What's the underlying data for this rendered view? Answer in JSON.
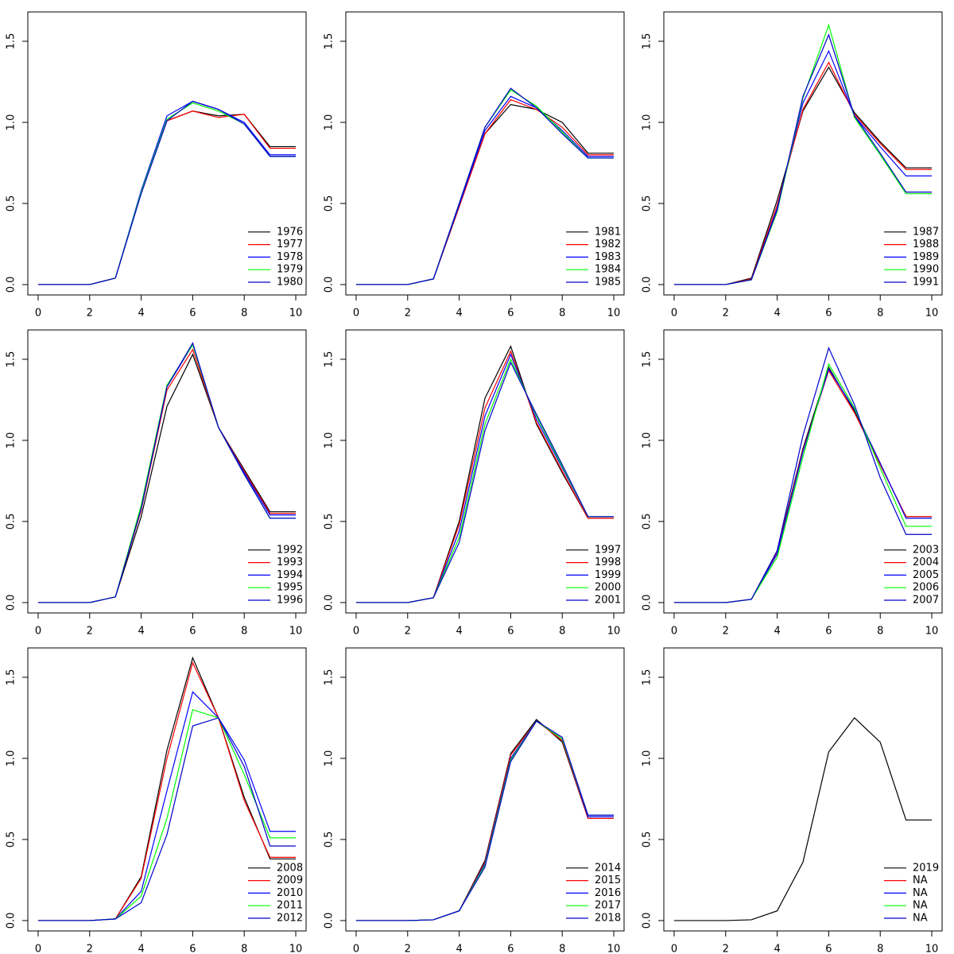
{
  "chart_data": [
    {
      "type": "line",
      "x": [
        0,
        1,
        2,
        3,
        4,
        5,
        6,
        7,
        8,
        9,
        10
      ],
      "xlim": [
        -0.4,
        10.4
      ],
      "xticks": [
        0,
        2,
        4,
        6,
        8,
        10
      ],
      "ylim": [
        -0.064,
        1.681
      ],
      "yticks": [
        {
          "value": 0,
          "label": "0.0"
        },
        0.5,
        {
          "value": 1,
          "label": "1.0"
        },
        1.5
      ],
      "legend": "bottomright",
      "series": [
        {
          "name": "1976",
          "color": "#000000",
          "values": [
            0,
            0,
            0,
            0.04,
            0.57,
            1.01,
            1.07,
            1.04,
            1.05,
            0.85,
            0.85
          ]
        },
        {
          "name": "1977",
          "color": "#ff0000",
          "values": [
            0,
            0,
            0,
            0.04,
            0.57,
            1.01,
            1.07,
            1.03,
            1.05,
            0.84,
            0.84
          ]
        },
        {
          "name": "1978",
          "color": "#0000ff",
          "values": [
            0,
            0,
            0,
            0.04,
            0.58,
            1.04,
            1.13,
            1.08,
            1.0,
            0.8,
            0.8
          ]
        },
        {
          "name": "1979",
          "color": "#00ff00",
          "values": [
            0,
            0,
            0,
            0.04,
            0.57,
            1.02,
            1.12,
            1.07,
            0.99,
            0.79,
            0.79
          ]
        },
        {
          "name": "1980",
          "color": "#0000cd",
          "values": [
            0,
            0,
            0,
            0.04,
            0.56,
            1.01,
            1.13,
            1.08,
            0.99,
            0.79,
            0.79
          ]
        }
      ]
    },
    {
      "type": "line",
      "x": [
        0,
        1,
        2,
        3,
        4,
        5,
        6,
        7,
        8,
        9,
        10
      ],
      "xlim": [
        -0.4,
        10.4
      ],
      "xticks": [
        0,
        2,
        4,
        6,
        8,
        10
      ],
      "ylim": [
        -0.064,
        1.681
      ],
      "yticks": [
        {
          "value": 0,
          "label": "0.0"
        },
        0.5,
        {
          "value": 1,
          "label": "1.0"
        },
        1.5
      ],
      "legend": "bottomright",
      "series": [
        {
          "name": "1981",
          "color": "#000000",
          "values": [
            0,
            0,
            0,
            0.035,
            0.48,
            0.93,
            1.11,
            1.08,
            1.0,
            0.81,
            0.81
          ]
        },
        {
          "name": "1982",
          "color": "#ff0000",
          "values": [
            0,
            0,
            0,
            0.035,
            0.48,
            0.93,
            1.14,
            1.08,
            0.97,
            0.8,
            0.8
          ]
        },
        {
          "name": "1983",
          "color": "#0000ff",
          "values": [
            0,
            0,
            0,
            0.035,
            0.49,
            0.95,
            1.16,
            1.09,
            0.95,
            0.79,
            0.79
          ]
        },
        {
          "name": "1984",
          "color": "#00ff00",
          "values": [
            0,
            0,
            0,
            0.035,
            0.5,
            0.97,
            1.2,
            1.1,
            0.94,
            0.78,
            0.78
          ]
        },
        {
          "name": "1985",
          "color": "#0000cd",
          "values": [
            0,
            0,
            0,
            0.035,
            0.5,
            0.97,
            1.21,
            1.09,
            0.93,
            0.78,
            0.78
          ]
        }
      ]
    },
    {
      "type": "line",
      "x": [
        0,
        1,
        2,
        3,
        4,
        5,
        6,
        7,
        8,
        9,
        10
      ],
      "xlim": [
        -0.4,
        10.4
      ],
      "xticks": [
        0,
        2,
        4,
        6,
        8,
        10
      ],
      "ylim": [
        -0.064,
        1.681
      ],
      "yticks": [
        {
          "value": 0,
          "label": "0.0"
        },
        0.5,
        {
          "value": 1,
          "label": "1.0"
        },
        1.5
      ],
      "legend": "bottomright",
      "series": [
        {
          "name": "1987",
          "color": "#000000",
          "values": [
            0,
            0,
            0,
            0.04,
            0.52,
            1.07,
            1.34,
            1.06,
            0.88,
            0.72,
            0.72
          ]
        },
        {
          "name": "1988",
          "color": "#ff0000",
          "values": [
            0,
            0,
            0,
            0.035,
            0.49,
            1.08,
            1.37,
            1.05,
            0.87,
            0.71,
            0.71
          ]
        },
        {
          "name": "1989",
          "color": "#0000ff",
          "values": [
            0,
            0,
            0,
            0.03,
            0.47,
            1.12,
            1.44,
            1.04,
            0.85,
            0.67,
            0.67
          ]
        },
        {
          "name": "1990",
          "color": "#00ff00",
          "values": [
            0,
            0,
            0,
            0.03,
            0.45,
            1.15,
            1.6,
            1.03,
            0.8,
            0.56,
            0.56
          ]
        },
        {
          "name": "1991",
          "color": "#0000cd",
          "values": [
            0,
            0,
            0,
            0.03,
            0.46,
            1.16,
            1.54,
            1.04,
            0.81,
            0.57,
            0.57
          ]
        }
      ]
    },
    {
      "type": "line",
      "x": [
        0,
        1,
        2,
        3,
        4,
        5,
        6,
        7,
        8,
        9,
        10
      ],
      "xlim": [
        -0.4,
        10.4
      ],
      "xticks": [
        0,
        2,
        4,
        6,
        8,
        10
      ],
      "ylim": [
        -0.064,
        1.681
      ],
      "yticks": [
        {
          "value": 0,
          "label": "0.0"
        },
        0.5,
        {
          "value": 1,
          "label": "1.0"
        },
        1.5
      ],
      "legend": "bottomright",
      "series": [
        {
          "name": "1992",
          "color": "#000000",
          "values": [
            0,
            0,
            0,
            0.035,
            0.53,
            1.21,
            1.53,
            1.08,
            0.82,
            0.56,
            0.56
          ]
        },
        {
          "name": "1993",
          "color": "#ff0000",
          "values": [
            0,
            0,
            0,
            0.035,
            0.57,
            1.31,
            1.56,
            1.08,
            0.81,
            0.55,
            0.55
          ]
        },
        {
          "name": "1994",
          "color": "#0000ff",
          "values": [
            0,
            0,
            0,
            0.035,
            0.58,
            1.33,
            1.59,
            1.08,
            0.8,
            0.54,
            0.54
          ]
        },
        {
          "name": "1995",
          "color": "#00ff00",
          "values": [
            0,
            0,
            0,
            0.035,
            0.6,
            1.34,
            1.59,
            1.08,
            0.79,
            0.52,
            0.52
          ]
        },
        {
          "name": "1996",
          "color": "#0000cd",
          "values": [
            0,
            0,
            0,
            0.035,
            0.58,
            1.33,
            1.6,
            1.08,
            0.79,
            0.52,
            0.52
          ]
        }
      ]
    },
    {
      "type": "line",
      "x": [
        0,
        1,
        2,
        3,
        4,
        5,
        6,
        7,
        8,
        9,
        10
      ],
      "xlim": [
        -0.4,
        10.4
      ],
      "xticks": [
        0,
        2,
        4,
        6,
        8,
        10
      ],
      "ylim": [
        -0.064,
        1.681
      ],
      "yticks": [
        {
          "value": 0,
          "label": "0.0"
        },
        0.5,
        {
          "value": 1,
          "label": "1.0"
        },
        1.5
      ],
      "legend": "bottomright",
      "series": [
        {
          "name": "1997",
          "color": "#000000",
          "values": [
            0,
            0,
            0,
            0.03,
            0.5,
            1.26,
            1.58,
            1.1,
            0.8,
            0.52,
            0.52
          ]
        },
        {
          "name": "1998",
          "color": "#ff0000",
          "values": [
            0,
            0,
            0,
            0.03,
            0.48,
            1.2,
            1.55,
            1.11,
            0.81,
            0.52,
            0.52
          ]
        },
        {
          "name": "1999",
          "color": "#0000ff",
          "values": [
            0,
            0,
            0,
            0.03,
            0.44,
            1.15,
            1.53,
            1.13,
            0.83,
            0.53,
            0.53
          ]
        },
        {
          "name": "2000",
          "color": "#00ff00",
          "values": [
            0,
            0,
            0,
            0.03,
            0.4,
            1.1,
            1.5,
            1.15,
            0.84,
            0.53,
            0.53
          ]
        },
        {
          "name": "2001",
          "color": "#0000cd",
          "values": [
            0,
            0,
            0,
            0.03,
            0.37,
            1.06,
            1.48,
            1.16,
            0.85,
            0.53,
            0.53
          ]
        }
      ]
    },
    {
      "type": "line",
      "x": [
        0,
        1,
        2,
        3,
        4,
        5,
        6,
        7,
        8,
        9,
        10
      ],
      "xlim": [
        -0.4,
        10.4
      ],
      "xticks": [
        0,
        2,
        4,
        6,
        8,
        10
      ],
      "ylim": [
        -0.064,
        1.681
      ],
      "yticks": [
        {
          "value": 0,
          "label": "0.0"
        },
        0.5,
        {
          "value": 1,
          "label": "1.0"
        },
        1.5
      ],
      "legend": "bottomright",
      "series": [
        {
          "name": "2003",
          "color": "#000000",
          "values": [
            0,
            0,
            0,
            0.02,
            0.32,
            0.95,
            1.45,
            1.18,
            0.85,
            0.53,
            0.53
          ]
        },
        {
          "name": "2004",
          "color": "#ff0000",
          "values": [
            0,
            0,
            0,
            0.02,
            0.31,
            0.94,
            1.43,
            1.17,
            0.85,
            0.53,
            0.53
          ]
        },
        {
          "name": "2005",
          "color": "#0000ff",
          "values": [
            0,
            0,
            0,
            0.02,
            0.3,
            0.93,
            1.44,
            1.19,
            0.86,
            0.52,
            0.52
          ]
        },
        {
          "name": "2006",
          "color": "#00ff00",
          "values": [
            0,
            0,
            0,
            0.02,
            0.28,
            0.9,
            1.47,
            1.2,
            0.83,
            0.47,
            0.47
          ]
        },
        {
          "name": "2007",
          "color": "#0000cd",
          "values": [
            0,
            0,
            0,
            0.02,
            0.32,
            1.03,
            1.57,
            1.22,
            0.77,
            0.42,
            0.42
          ]
        }
      ]
    },
    {
      "type": "line",
      "x": [
        0,
        1,
        2,
        3,
        4,
        5,
        6,
        7,
        8,
        9,
        10
      ],
      "xlim": [
        -0.4,
        10.4
      ],
      "xticks": [
        0,
        2,
        4,
        6,
        8,
        10
      ],
      "ylim": [
        -0.064,
        1.681
      ],
      "yticks": [
        {
          "value": 0,
          "label": "0.0"
        },
        0.5,
        {
          "value": 1,
          "label": "1.0"
        },
        1.5
      ],
      "legend": "bottomright",
      "series": [
        {
          "name": "2008",
          "color": "#000000",
          "values": [
            0,
            0,
            0,
            0.01,
            0.27,
            1.05,
            1.62,
            1.25,
            0.76,
            0.38,
            0.38
          ]
        },
        {
          "name": "2009",
          "color": "#ff0000",
          "values": [
            0,
            0,
            0,
            0.01,
            0.26,
            1.0,
            1.59,
            1.25,
            0.74,
            0.39,
            0.39
          ]
        },
        {
          "name": "2010",
          "color": "#0000ff",
          "values": [
            0,
            0,
            0,
            0.01,
            0.18,
            0.8,
            1.41,
            1.25,
            0.99,
            0.55,
            0.55
          ]
        },
        {
          "name": "2011",
          "color": "#00ff00",
          "values": [
            0,
            0,
            0,
            0.01,
            0.15,
            0.63,
            1.3,
            1.25,
            0.9,
            0.51,
            0.51
          ]
        },
        {
          "name": "2012",
          "color": "#0000cd",
          "values": [
            0,
            0,
            0,
            0.01,
            0.11,
            0.53,
            1.2,
            1.25,
            0.95,
            0.46,
            0.46
          ]
        }
      ]
    },
    {
      "type": "line",
      "x": [
        0,
        1,
        2,
        3,
        4,
        5,
        6,
        7,
        8,
        9,
        10
      ],
      "xlim": [
        -0.4,
        10.4
      ],
      "xticks": [
        0,
        2,
        4,
        6,
        8,
        10
      ],
      "ylim": [
        -0.064,
        1.681
      ],
      "yticks": [
        {
          "value": 0,
          "label": "0.0"
        },
        0.5,
        {
          "value": 1,
          "label": "1.0"
        },
        1.5
      ],
      "legend": "bottomright",
      "series": [
        {
          "name": "2014",
          "color": "#000000",
          "values": [
            0,
            0,
            0,
            0.005,
            0.06,
            0.37,
            1.03,
            1.24,
            1.1,
            0.63,
            0.63
          ]
        },
        {
          "name": "2015",
          "color": "#ff0000",
          "values": [
            0,
            0,
            0,
            0.005,
            0.06,
            0.36,
            1.02,
            1.23,
            1.11,
            0.63,
            0.63
          ]
        },
        {
          "name": "2016",
          "color": "#0000ff",
          "values": [
            0,
            0,
            0,
            0.005,
            0.06,
            0.35,
            1.0,
            1.23,
            1.12,
            0.64,
            0.64
          ]
        },
        {
          "name": "2017",
          "color": "#00ff00",
          "values": [
            0,
            0,
            0,
            0.005,
            0.06,
            0.34,
            0.99,
            1.23,
            1.12,
            0.65,
            0.65
          ]
        },
        {
          "name": "2018",
          "color": "#0000cd",
          "values": [
            0,
            0,
            0,
            0.005,
            0.06,
            0.33,
            0.98,
            1.23,
            1.13,
            0.65,
            0.65
          ]
        }
      ]
    },
    {
      "type": "line",
      "x": [
        0,
        1,
        2,
        3,
        4,
        5,
        6,
        7,
        8,
        9,
        10
      ],
      "xlim": [
        -0.4,
        10.4
      ],
      "xticks": [
        0,
        2,
        4,
        6,
        8,
        10
      ],
      "ylim": [
        -0.064,
        1.681
      ],
      "yticks": [
        {
          "value": 0,
          "label": "0.0"
        },
        0.5,
        {
          "value": 1,
          "label": "1.0"
        },
        1.5
      ],
      "legend": "bottomright",
      "series": [
        {
          "name": "2019",
          "color": "#000000",
          "values": [
            0,
            0,
            0,
            0.005,
            0.06,
            0.36,
            1.04,
            1.25,
            1.1,
            0.62,
            0.62
          ]
        },
        {
          "name": "NA",
          "color": "#ff0000",
          "values": [
            null,
            null,
            null,
            null,
            null,
            null,
            null,
            null,
            null,
            null,
            null
          ]
        },
        {
          "name": "NA",
          "color": "#0000ff",
          "values": [
            null,
            null,
            null,
            null,
            null,
            null,
            null,
            null,
            null,
            null,
            null
          ]
        },
        {
          "name": "NA",
          "color": "#00ff00",
          "values": [
            null,
            null,
            null,
            null,
            null,
            null,
            null,
            null,
            null,
            null,
            null
          ]
        },
        {
          "name": "NA",
          "color": "#0000cd",
          "values": [
            null,
            null,
            null,
            null,
            null,
            null,
            null,
            null,
            null,
            null,
            null
          ]
        }
      ]
    }
  ]
}
